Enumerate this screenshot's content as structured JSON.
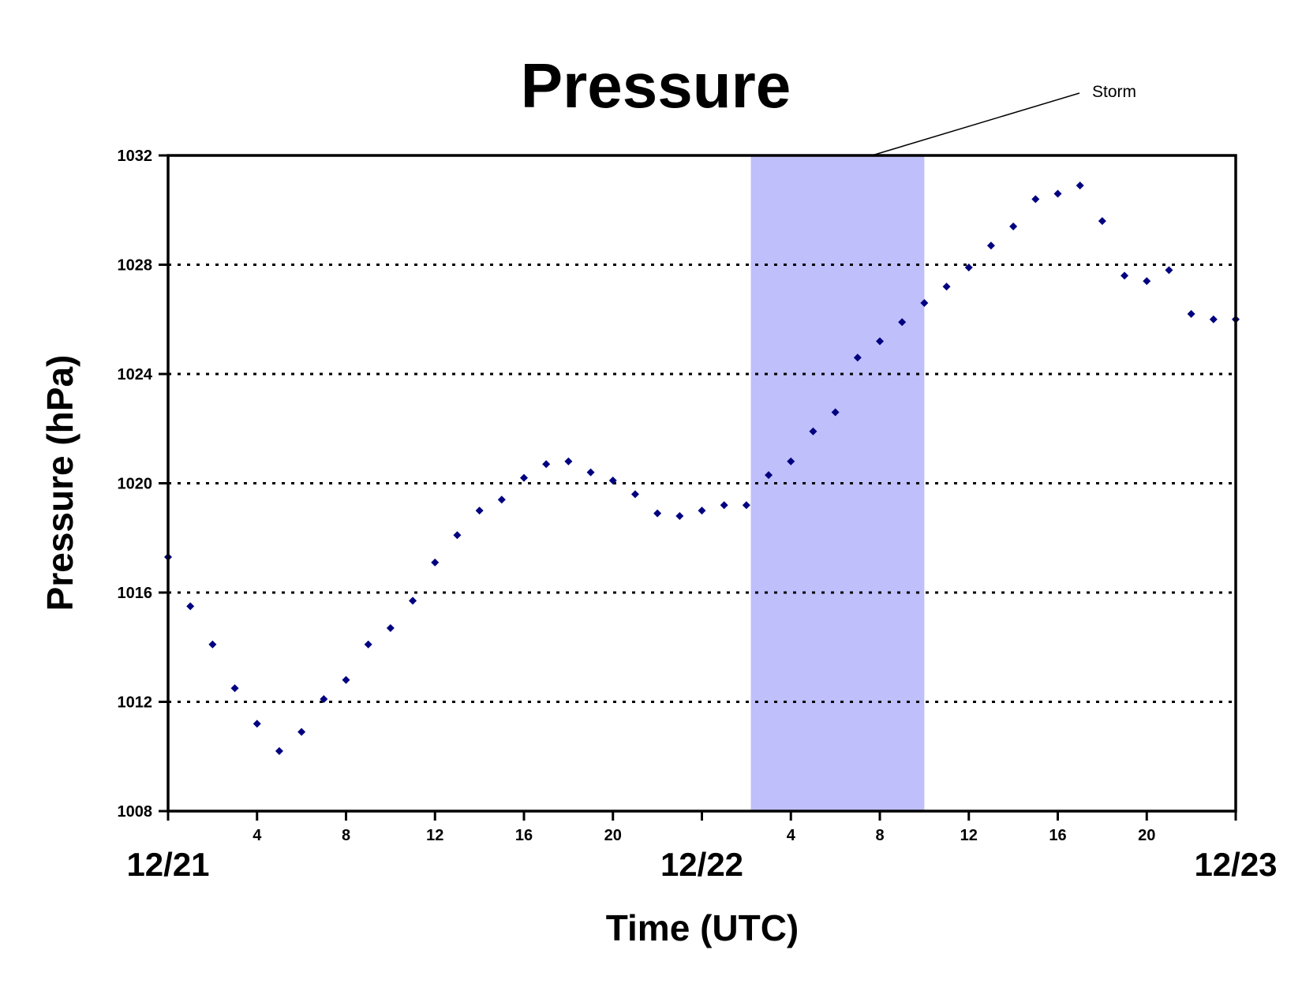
{
  "chart_data": {
    "type": "scatter",
    "title": "Pressure",
    "xlabel": "Time (UTC)",
    "ylabel": "Pressure (hPa)",
    "xlim": [
      0,
      48
    ],
    "ylim": [
      1008,
      1032
    ],
    "y_ticks": [
      "1008",
      "1012",
      "1016",
      "1020",
      "1024",
      "1028",
      "1032"
    ],
    "x_hour_ticks": [
      {
        "x": 4,
        "label": "4"
      },
      {
        "x": 8,
        "label": "8"
      },
      {
        "x": 12,
        "label": "12"
      },
      {
        "x": 16,
        "label": "16"
      },
      {
        "x": 20,
        "label": "20"
      },
      {
        "x": 28,
        "label": "4"
      },
      {
        "x": 32,
        "label": "8"
      },
      {
        "x": 36,
        "label": "12"
      },
      {
        "x": 40,
        "label": "16"
      },
      {
        "x": 44,
        "label": "20"
      }
    ],
    "x_date_ticks": [
      {
        "x": 0,
        "label": "12/21"
      },
      {
        "x": 24,
        "label": "12/22"
      },
      {
        "x": 48,
        "label": "12/23"
      }
    ],
    "grid": "horizontal dotted",
    "legend": "none",
    "highlight": {
      "label": "Storm",
      "x_start": 26.2,
      "x_end": 34,
      "color": "#bfbffc"
    },
    "marker_color": "#000080",
    "series": [
      {
        "x": [
          0,
          1,
          2,
          3,
          4,
          5,
          6,
          7,
          8,
          9,
          10,
          11,
          12,
          13,
          14,
          15,
          16,
          17,
          18,
          19,
          20,
          21,
          22,
          23,
          24,
          25,
          26,
          27,
          28,
          29,
          30,
          31,
          32,
          33,
          34,
          35,
          36,
          37,
          38,
          39,
          40,
          41,
          42,
          43,
          44,
          45,
          46,
          47,
          48
        ],
        "values": [
          1017.3,
          1015.5,
          1014.1,
          1012.5,
          1011.2,
          1010.2,
          1010.9,
          1012.1,
          1012.8,
          1014.1,
          1014.7,
          1015.7,
          1017.1,
          1018.1,
          1019.0,
          1019.4,
          1020.2,
          1020.7,
          1020.8,
          1020.4,
          1020.1,
          1019.6,
          1018.9,
          1018.8,
          1019.0,
          1019.2,
          1019.2,
          1020.3,
          1020.8,
          1021.9,
          1022.6,
          1024.6,
          1025.2,
          1025.9,
          1026.6,
          1027.2,
          1027.9,
          1028.7,
          1029.4,
          1030.4,
          1030.6,
          1030.9,
          1029.6,
          1027.6,
          1027.4,
          1027.8,
          1026.2,
          1026.0,
          1026.0
        ]
      }
    ]
  }
}
